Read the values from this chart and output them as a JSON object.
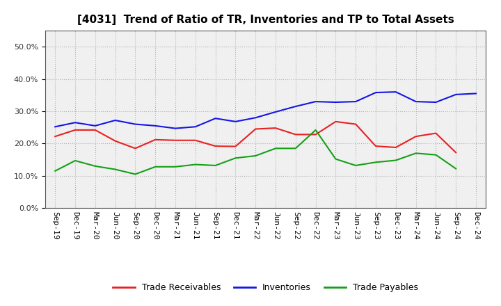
{
  "title": "[4031]  Trend of Ratio of TR, Inventories and TP to Total Assets",
  "x_labels": [
    "Sep-19",
    "Dec-19",
    "Mar-20",
    "Jun-20",
    "Sep-20",
    "Dec-20",
    "Mar-21",
    "Jun-21",
    "Sep-21",
    "Dec-21",
    "Mar-22",
    "Jun-22",
    "Sep-22",
    "Dec-22",
    "Mar-23",
    "Jun-23",
    "Sep-23",
    "Dec-23",
    "Mar-24",
    "Jun-24",
    "Sep-24",
    "Dec-24"
  ],
  "trade_receivables": [
    0.222,
    0.242,
    0.242,
    0.208,
    0.185,
    0.212,
    0.21,
    0.21,
    0.192,
    0.191,
    0.245,
    0.248,
    0.228,
    0.228,
    0.268,
    0.26,
    0.192,
    0.188,
    0.222,
    0.232,
    0.172,
    null
  ],
  "inventories": [
    0.252,
    0.265,
    0.255,
    0.272,
    0.26,
    0.255,
    0.247,
    0.252,
    0.278,
    0.268,
    0.28,
    0.298,
    0.315,
    0.33,
    0.328,
    0.33,
    0.358,
    0.36,
    0.33,
    0.328,
    0.352,
    0.355
  ],
  "trade_payables": [
    0.115,
    0.147,
    0.13,
    0.12,
    0.105,
    0.128,
    0.128,
    0.135,
    0.132,
    0.155,
    0.162,
    0.185,
    0.185,
    0.242,
    0.152,
    0.132,
    0.142,
    0.148,
    0.17,
    0.165,
    0.122,
    null
  ],
  "ylim": [
    0.0,
    0.55
  ],
  "yticks": [
    0.0,
    0.1,
    0.2,
    0.3,
    0.4,
    0.5
  ],
  "line_color_tr": "#e82020",
  "line_color_inv": "#1414e8",
  "line_color_tp": "#14a014",
  "legend_labels": [
    "Trade Receivables",
    "Inventories",
    "Trade Payables"
  ],
  "background_color": "#ffffff",
  "plot_bg_color": "#f0f0f0",
  "grid_color": "#aaaaaa",
  "title_fontsize": 11,
  "tick_fontsize": 8,
  "legend_fontsize": 9,
  "linewidth": 1.5
}
